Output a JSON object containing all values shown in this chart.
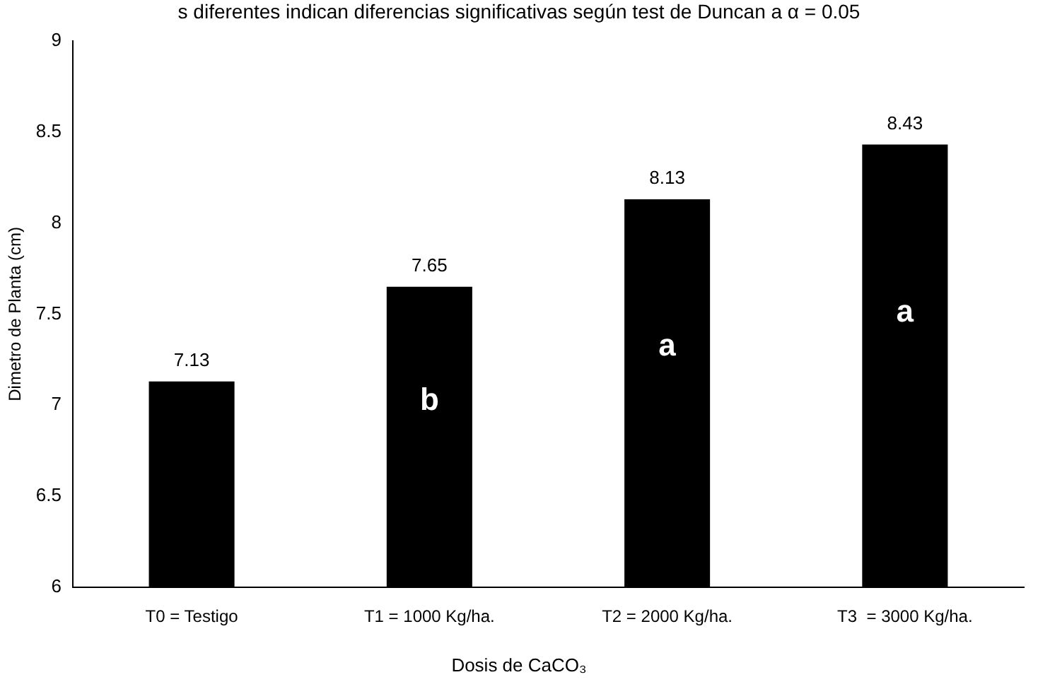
{
  "chart_data": {
    "type": "bar",
    "title": "s diferentes indican diferencias significativas según test de Duncan a α = 0.05",
    "xlabel": "Dosis de CaCO₃",
    "ylabel": "Dimetro de Planta (cm)",
    "categories": [
      "T0 = Testigo",
      "T1 = 1000 Kg/ha.",
      "T2 = 2000 Kg/ha.",
      "T3  = 3000 Kg/ha."
    ],
    "values": [
      7.13,
      7.65,
      8.13,
      8.43
    ],
    "color": "#000000",
    "ylim": [
      6,
      9
    ],
    "yticks": [
      6,
      6.5,
      7,
      7.5,
      8,
      8.5,
      9
    ],
    "grid": false,
    "legend": false,
    "data_labels": true,
    "annotations": [
      "b",
      "a",
      "a"
    ]
  }
}
